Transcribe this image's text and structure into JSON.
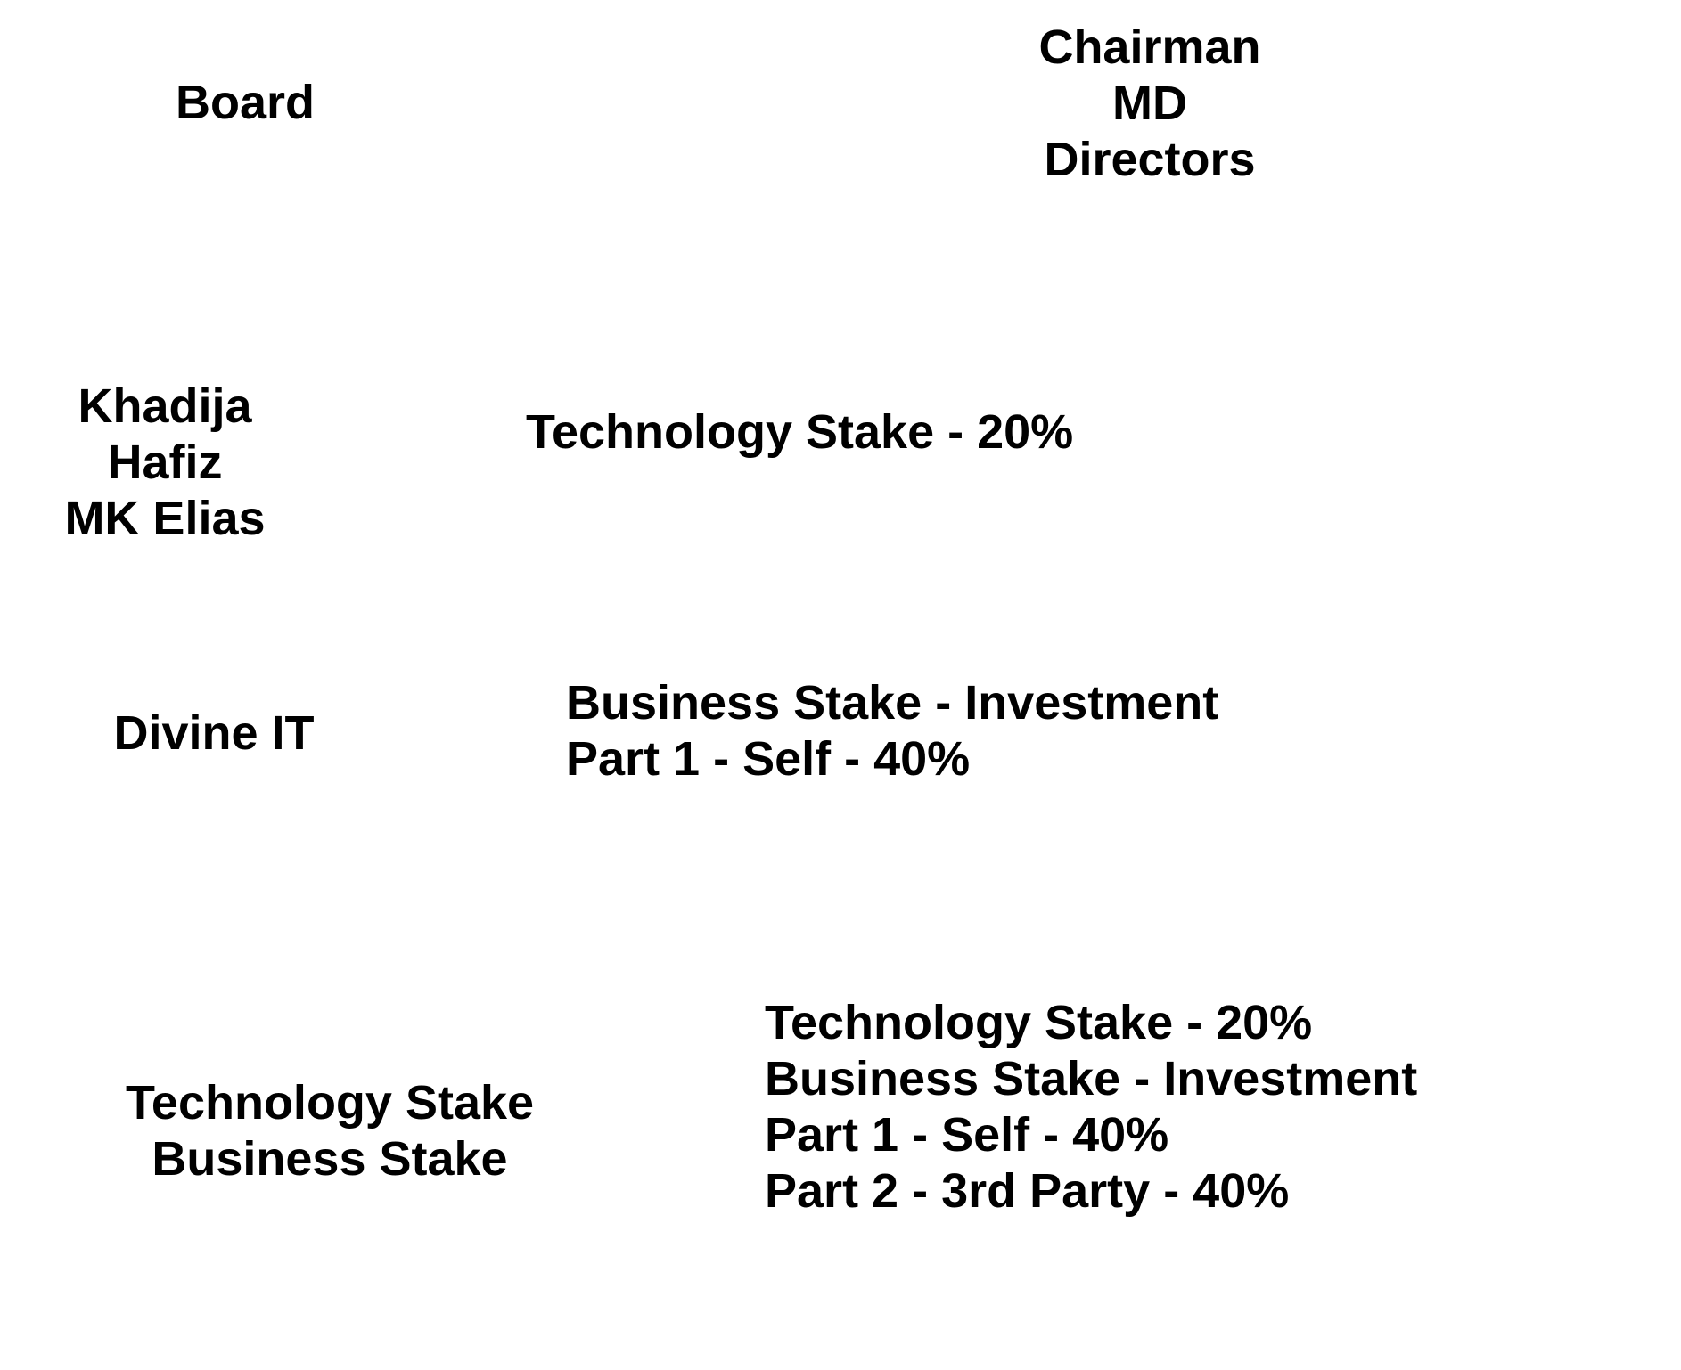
{
  "board": {
    "label": "Board",
    "members": [
      "Chairman",
      "MD",
      "Directors"
    ]
  },
  "people": {
    "names": [
      "Khadija",
      "Hafiz",
      "MK Elias"
    ],
    "stake": "Technology Stake - 20%"
  },
  "company": {
    "name": "Divine IT",
    "stake_lines": [
      "Business Stake - Investment",
      "Part 1 - Self - 40%"
    ]
  },
  "summary": {
    "stake_types": [
      "Technology Stake",
      "Business Stake"
    ],
    "breakdown": [
      "Technology Stake - 20%",
      "Business Stake - Investment",
      "Part 1 - Self - 40%",
      "Part 2 - 3rd Party - 40%"
    ]
  }
}
